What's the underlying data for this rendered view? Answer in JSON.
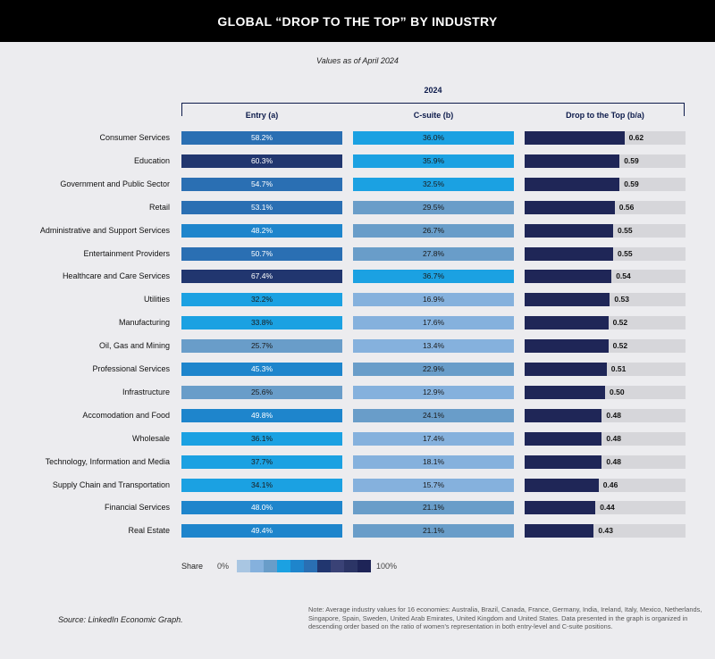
{
  "header": {
    "title": "GLOBAL “DROP TO THE TOP” BY INDUSTRY",
    "subtitle": "Values as of April 2024",
    "year": "2024"
  },
  "columns": [
    "Entry (a)",
    "C-suite (b)",
    "Drop to the Top (b/a)"
  ],
  "legend": {
    "title": "Share",
    "min_label": "0%",
    "max_label": "100%",
    "colors": [
      "#a9c6e2",
      "#85b1dd",
      "#699dc9",
      "#1ba1e2",
      "#1e85cc",
      "#2a6fb3",
      "#21366f",
      "#3a4276",
      "#2c3566",
      "#1e2457"
    ]
  },
  "source": "Source: LinkedIn Economic Graph.",
  "note": "Note: Average industry values for 16 economies: Australia, Brazil, Canada, France, Germany, India, Ireland, Italy, Mexico, Netherlands, Singapore, Spain, Sweden, United Arab Emirates, United Kingdom and United States. Data presented in the graph is organized in descending order based on the ratio of women’s representation in both entry-level and C-suite positions.",
  "colors": {
    "ratio_bar": "#1f2657",
    "track": "#d6d6da"
  },
  "chart_data": {
    "type": "table",
    "title": "GLOBAL “DROP TO THE TOP” BY INDUSTRY",
    "subtitle": "Values as of April 2024",
    "column_group": "2024",
    "columns": [
      "Entry (a)",
      "C-suite (b)",
      "Drop to the Top (b/a)"
    ],
    "rows": [
      {
        "industry": "Consumer Services",
        "entry": 58.2,
        "entry_label": "58.2%",
        "csuite": 36.0,
        "csuite_label": "36.0%",
        "ratio": 0.62,
        "ratio_label": "0.62"
      },
      {
        "industry": "Education",
        "entry": 60.3,
        "entry_label": "60.3%",
        "csuite": 35.9,
        "csuite_label": "35.9%",
        "ratio": 0.59,
        "ratio_label": "0.59"
      },
      {
        "industry": "Government and Public Sector",
        "entry": 54.7,
        "entry_label": "54.7%",
        "csuite": 32.5,
        "csuite_label": "32.5%",
        "ratio": 0.59,
        "ratio_label": "0.59"
      },
      {
        "industry": "Retail",
        "entry": 53.1,
        "entry_label": "53.1%",
        "csuite": 29.5,
        "csuite_label": "29.5%",
        "ratio": 0.56,
        "ratio_label": "0.56"
      },
      {
        "industry": "Administrative and Support Services",
        "entry": 48.2,
        "entry_label": "48.2%",
        "csuite": 26.7,
        "csuite_label": "26.7%",
        "ratio": 0.55,
        "ratio_label": "0.55"
      },
      {
        "industry": "Entertainment Providers",
        "entry": 50.7,
        "entry_label": "50.7%",
        "csuite": 27.8,
        "csuite_label": "27.8%",
        "ratio": 0.55,
        "ratio_label": "0.55"
      },
      {
        "industry": "Healthcare and Care Services",
        "entry": 67.4,
        "entry_label": "67.4%",
        "csuite": 36.7,
        "csuite_label": "36.7%",
        "ratio": 0.54,
        "ratio_label": "0.54"
      },
      {
        "industry": "Utilities",
        "entry": 32.2,
        "entry_label": "32.2%",
        "csuite": 16.9,
        "csuite_label": "16.9%",
        "ratio": 0.53,
        "ratio_label": "0.53"
      },
      {
        "industry": "Manufacturing",
        "entry": 33.8,
        "entry_label": "33.8%",
        "csuite": 17.6,
        "csuite_label": "17.6%",
        "ratio": 0.52,
        "ratio_label": "0.52"
      },
      {
        "industry": "Oil, Gas and Mining",
        "entry": 25.7,
        "entry_label": "25.7%",
        "csuite": 13.4,
        "csuite_label": "13.4%",
        "ratio": 0.52,
        "ratio_label": "0.52"
      },
      {
        "industry": "Professional Services",
        "entry": 45.3,
        "entry_label": "45.3%",
        "csuite": 22.9,
        "csuite_label": "22.9%",
        "ratio": 0.51,
        "ratio_label": "0.51"
      },
      {
        "industry": "Infrastructure",
        "entry": 25.6,
        "entry_label": "25.6%",
        "csuite": 12.9,
        "csuite_label": "12.9%",
        "ratio": 0.5,
        "ratio_label": "0.50"
      },
      {
        "industry": "Accomodation and Food",
        "entry": 49.8,
        "entry_label": "49.8%",
        "csuite": 24.1,
        "csuite_label": "24.1%",
        "ratio": 0.48,
        "ratio_label": "0.48"
      },
      {
        "industry": "Wholesale",
        "entry": 36.1,
        "entry_label": "36.1%",
        "csuite": 17.4,
        "csuite_label": "17.4%",
        "ratio": 0.48,
        "ratio_label": "0.48"
      },
      {
        "industry": "Technology, Information and Media",
        "entry": 37.7,
        "entry_label": "37.7%",
        "csuite": 18.1,
        "csuite_label": "18.1%",
        "ratio": 0.48,
        "ratio_label": "0.48"
      },
      {
        "industry": "Supply Chain and Transportation",
        "entry": 34.1,
        "entry_label": "34.1%",
        "csuite": 15.7,
        "csuite_label": "15.7%",
        "ratio": 0.46,
        "ratio_label": "0.46"
      },
      {
        "industry": "Financial Services",
        "entry": 48.0,
        "entry_label": "48.0%",
        "csuite": 21.1,
        "csuite_label": "21.1%",
        "ratio": 0.44,
        "ratio_label": "0.44"
      },
      {
        "industry": "Real Estate",
        "entry": 49.4,
        "entry_label": "49.4%",
        "csuite": 21.1,
        "csuite_label": "21.1%",
        "ratio": 0.43,
        "ratio_label": "0.43"
      }
    ],
    "ratio_range": [
      0,
      1
    ],
    "share_range": [
      0,
      100
    ]
  }
}
